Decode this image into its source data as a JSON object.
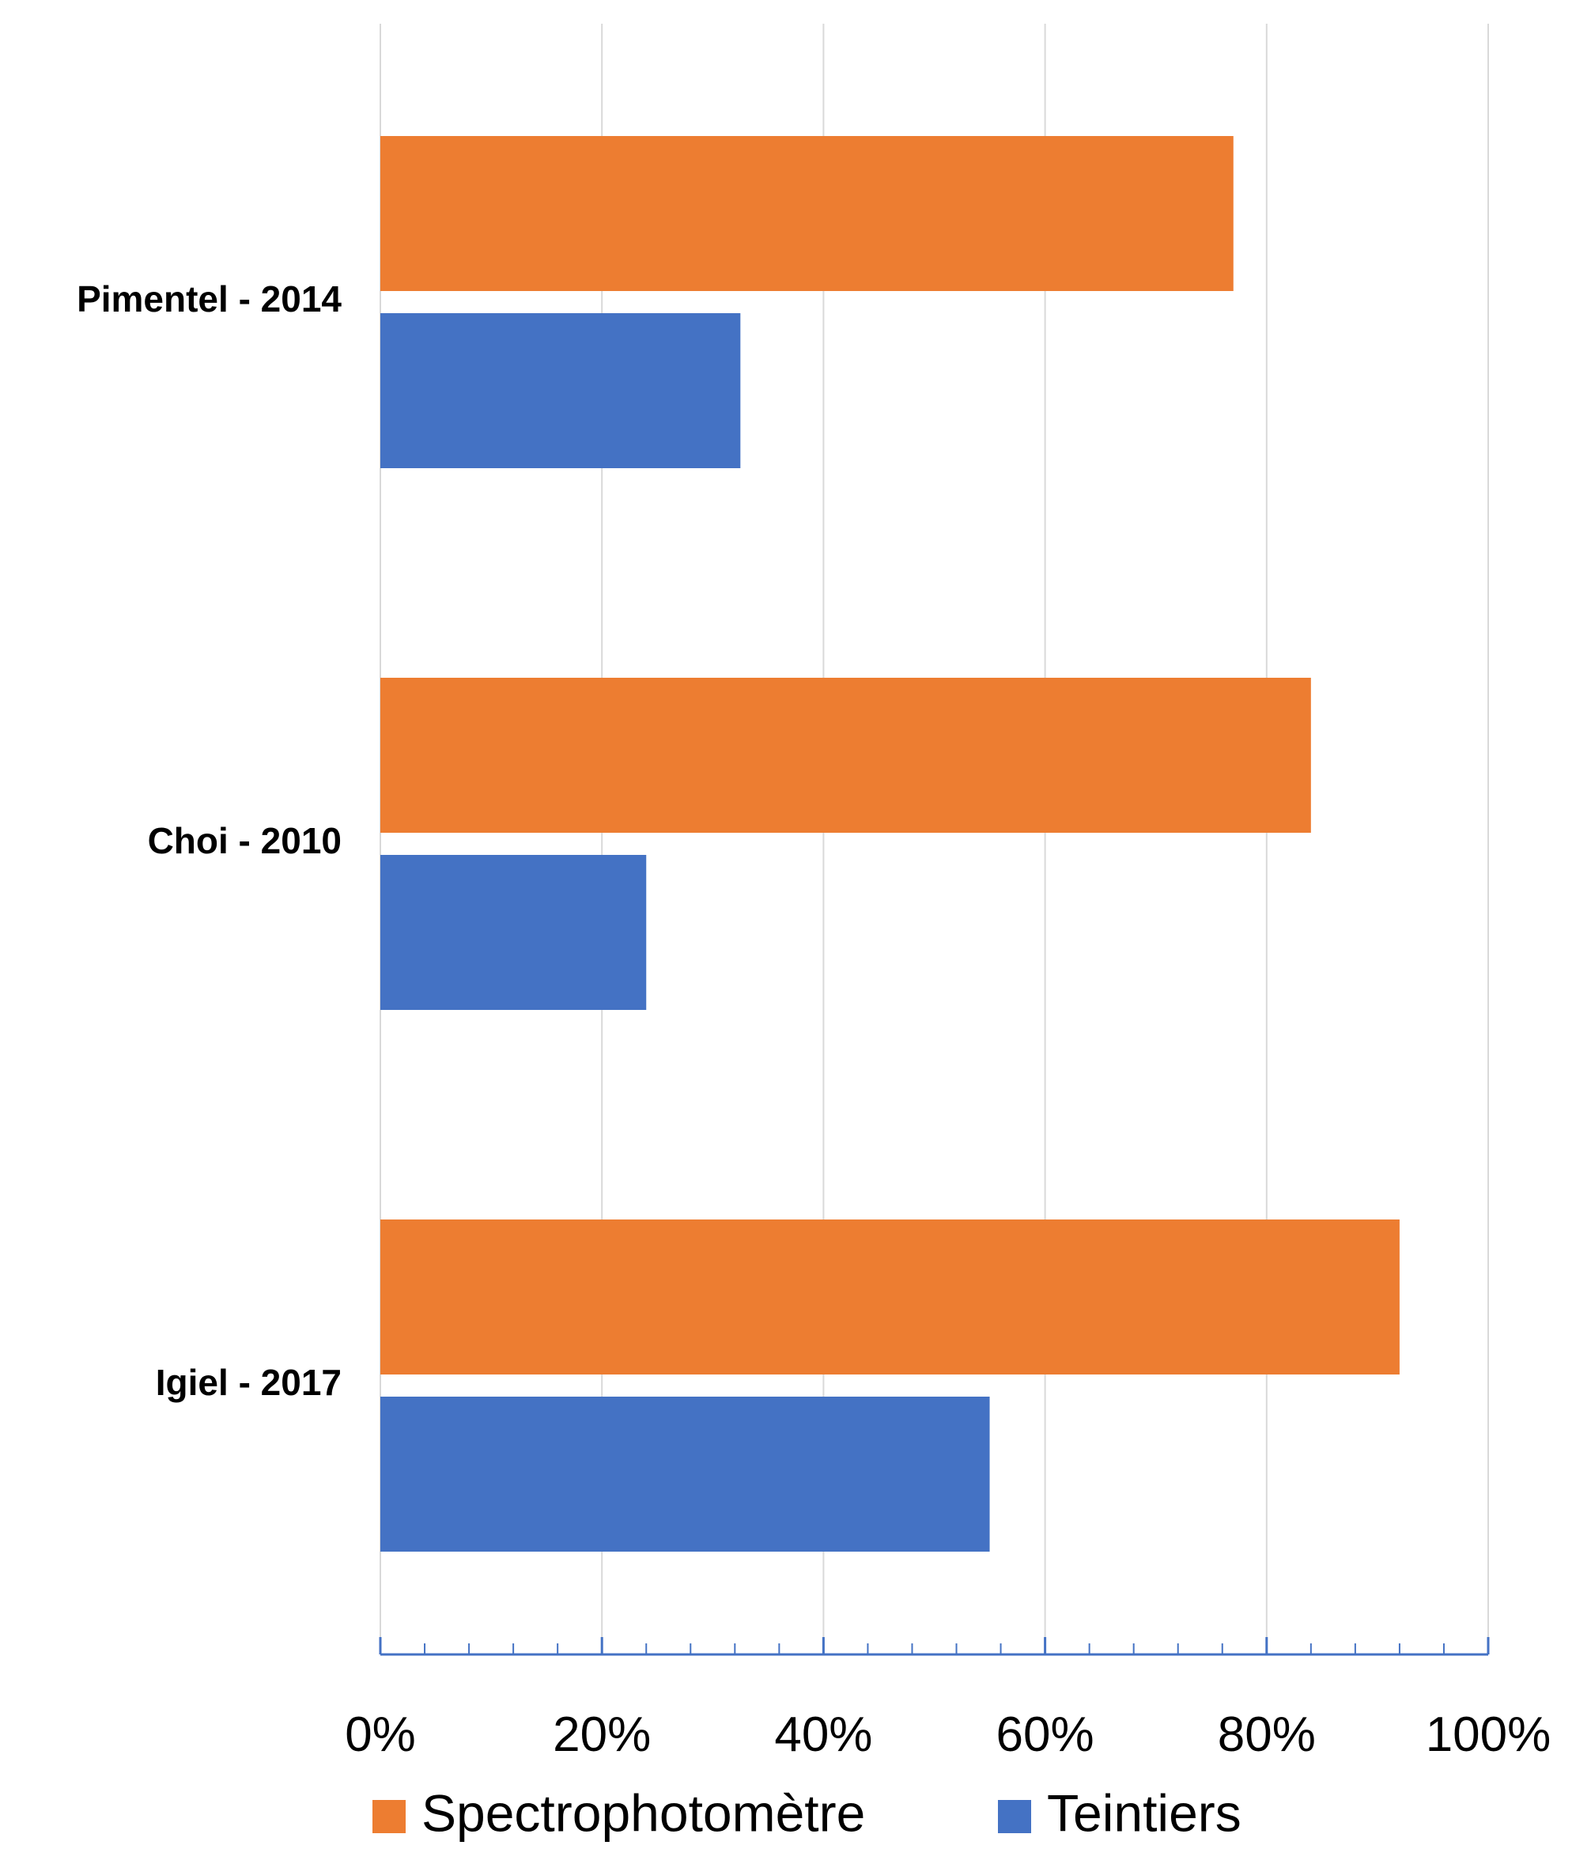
{
  "chart_data": {
    "type": "bar",
    "orientation": "horizontal",
    "categories": [
      "Pimentel - 2014",
      "Choi - 2010",
      "Igiel - 2017"
    ],
    "series": [
      {
        "name": "Spectrophotomètre",
        "color": "#ED7D31",
        "values": [
          0.77,
          0.84,
          0.92
        ]
      },
      {
        "name": "Teintiers",
        "color": "#4472C4",
        "values": [
          0.325,
          0.24,
          0.55
        ]
      }
    ],
    "xlim": [
      0,
      1
    ],
    "x_ticks": [
      "0%",
      "20%",
      "40%",
      "60%",
      "80%",
      "100%"
    ],
    "grid": true,
    "legend_position": "bottom"
  }
}
